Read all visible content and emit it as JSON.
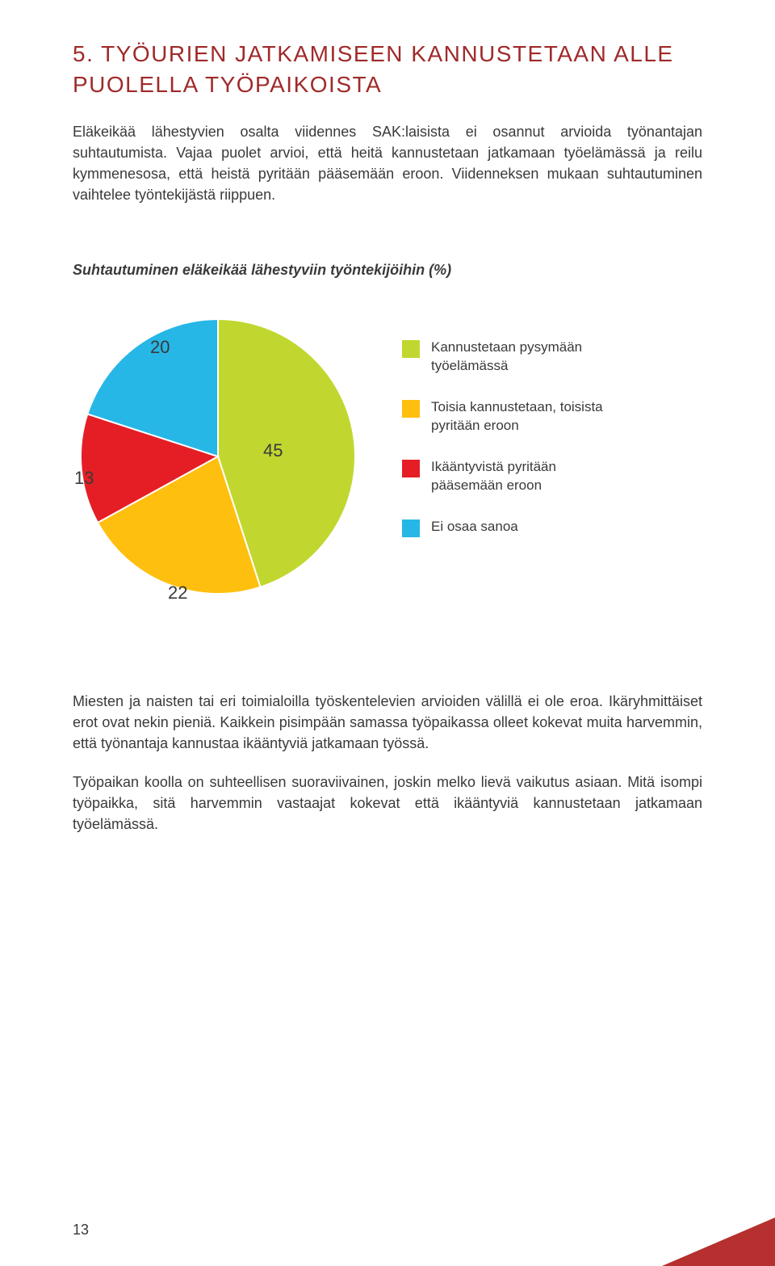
{
  "colors": {
    "title": "#a02a2a",
    "text": "#3a3a3a",
    "corner": "#b5302e"
  },
  "title": "5. TYÖURIEN JATKAMISEEN KANNUSTETAAN ALLE PUOLELLA TYÖPAIKOISTA",
  "p1": "Eläkeikää lähestyvien osalta viidennes SAK:laisista ei osannut arvioida työnantajan suhtautumista. Vajaa puolet arvioi, että heitä kannustetaan jatkamaan työelämässä ja reilu kymmenesosa, että heistä pyritään pääsemään eroon. Viidenneksen mukaan suhtautuminen vaihtelee työntekijästä riippuen.",
  "chart": {
    "title": "Suhtautuminen eläkeikää lähestyviin työntekijöihin (%)",
    "type": "pie",
    "slices": [
      {
        "value": 45,
        "color": "#c1d72f",
        "label": "Kannustetaan pysymään työelämässä"
      },
      {
        "value": 22,
        "color": "#ffbf0f",
        "label": "Toisia kannustetaan, toisista pyritään eroon"
      },
      {
        "value": 13,
        "color": "#e51e26",
        "label": "Ikääntyvistä pyritään pääsemään eroon"
      },
      {
        "value": 20,
        "color": "#26b7e6",
        "label": "Ei osaa sanoa"
      }
    ],
    "stroke": "#ffffff",
    "stroke_width": 2
  },
  "p2": "Miesten ja naisten tai eri toimialoilla työskentelevien arvioiden välillä ei ole eroa. Ikäryhmittäiset erot ovat nekin pieniä. Kaikkein pisimpään samassa työpaikassa olleet kokevat muita harvemmin, että työnantaja kannustaa ikääntyviä jatkamaan työssä.",
  "p3": "Työpaikan koolla on suhteellisen suoraviivainen, joskin melko lievä vaikutus asiaan. Mitä isompi työpaikka, sitä harvemmin vastaajat kokevat että ikääntyviä kannustetaan jatkamaan työelämässä.",
  "page_number": "13"
}
